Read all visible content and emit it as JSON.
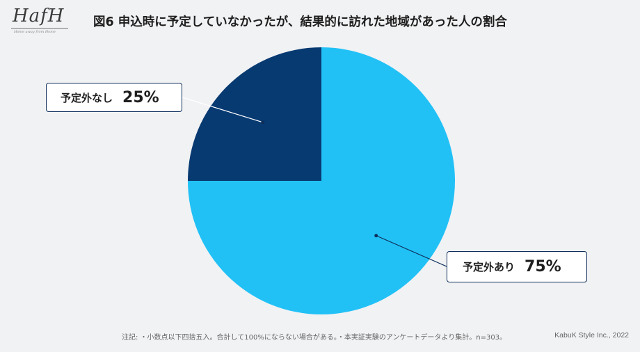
{
  "logo": {
    "text": "HafH",
    "tagline": "Home away from Home"
  },
  "chart_data": {
    "type": "pie",
    "title": "図6 申込時に予定していなかったが、結果的に訪れた地域があった人の割合",
    "start_angle_deg": 0,
    "direction": "clockwise",
    "slices": [
      {
        "label": "予定外あり",
        "value": 75,
        "value_label": "75%",
        "color": "#21c1f6"
      },
      {
        "label": "予定外なし",
        "value": 25,
        "value_label": "25%",
        "color": "#083a72"
      }
    ]
  },
  "footer": {
    "note": "注記: ・小数点以下四捨五入。合計して100%にならない場合がある。・本実証実験のアンケートデータより集計。n=303。",
    "credit": "KabuK Style Inc., 2022"
  }
}
